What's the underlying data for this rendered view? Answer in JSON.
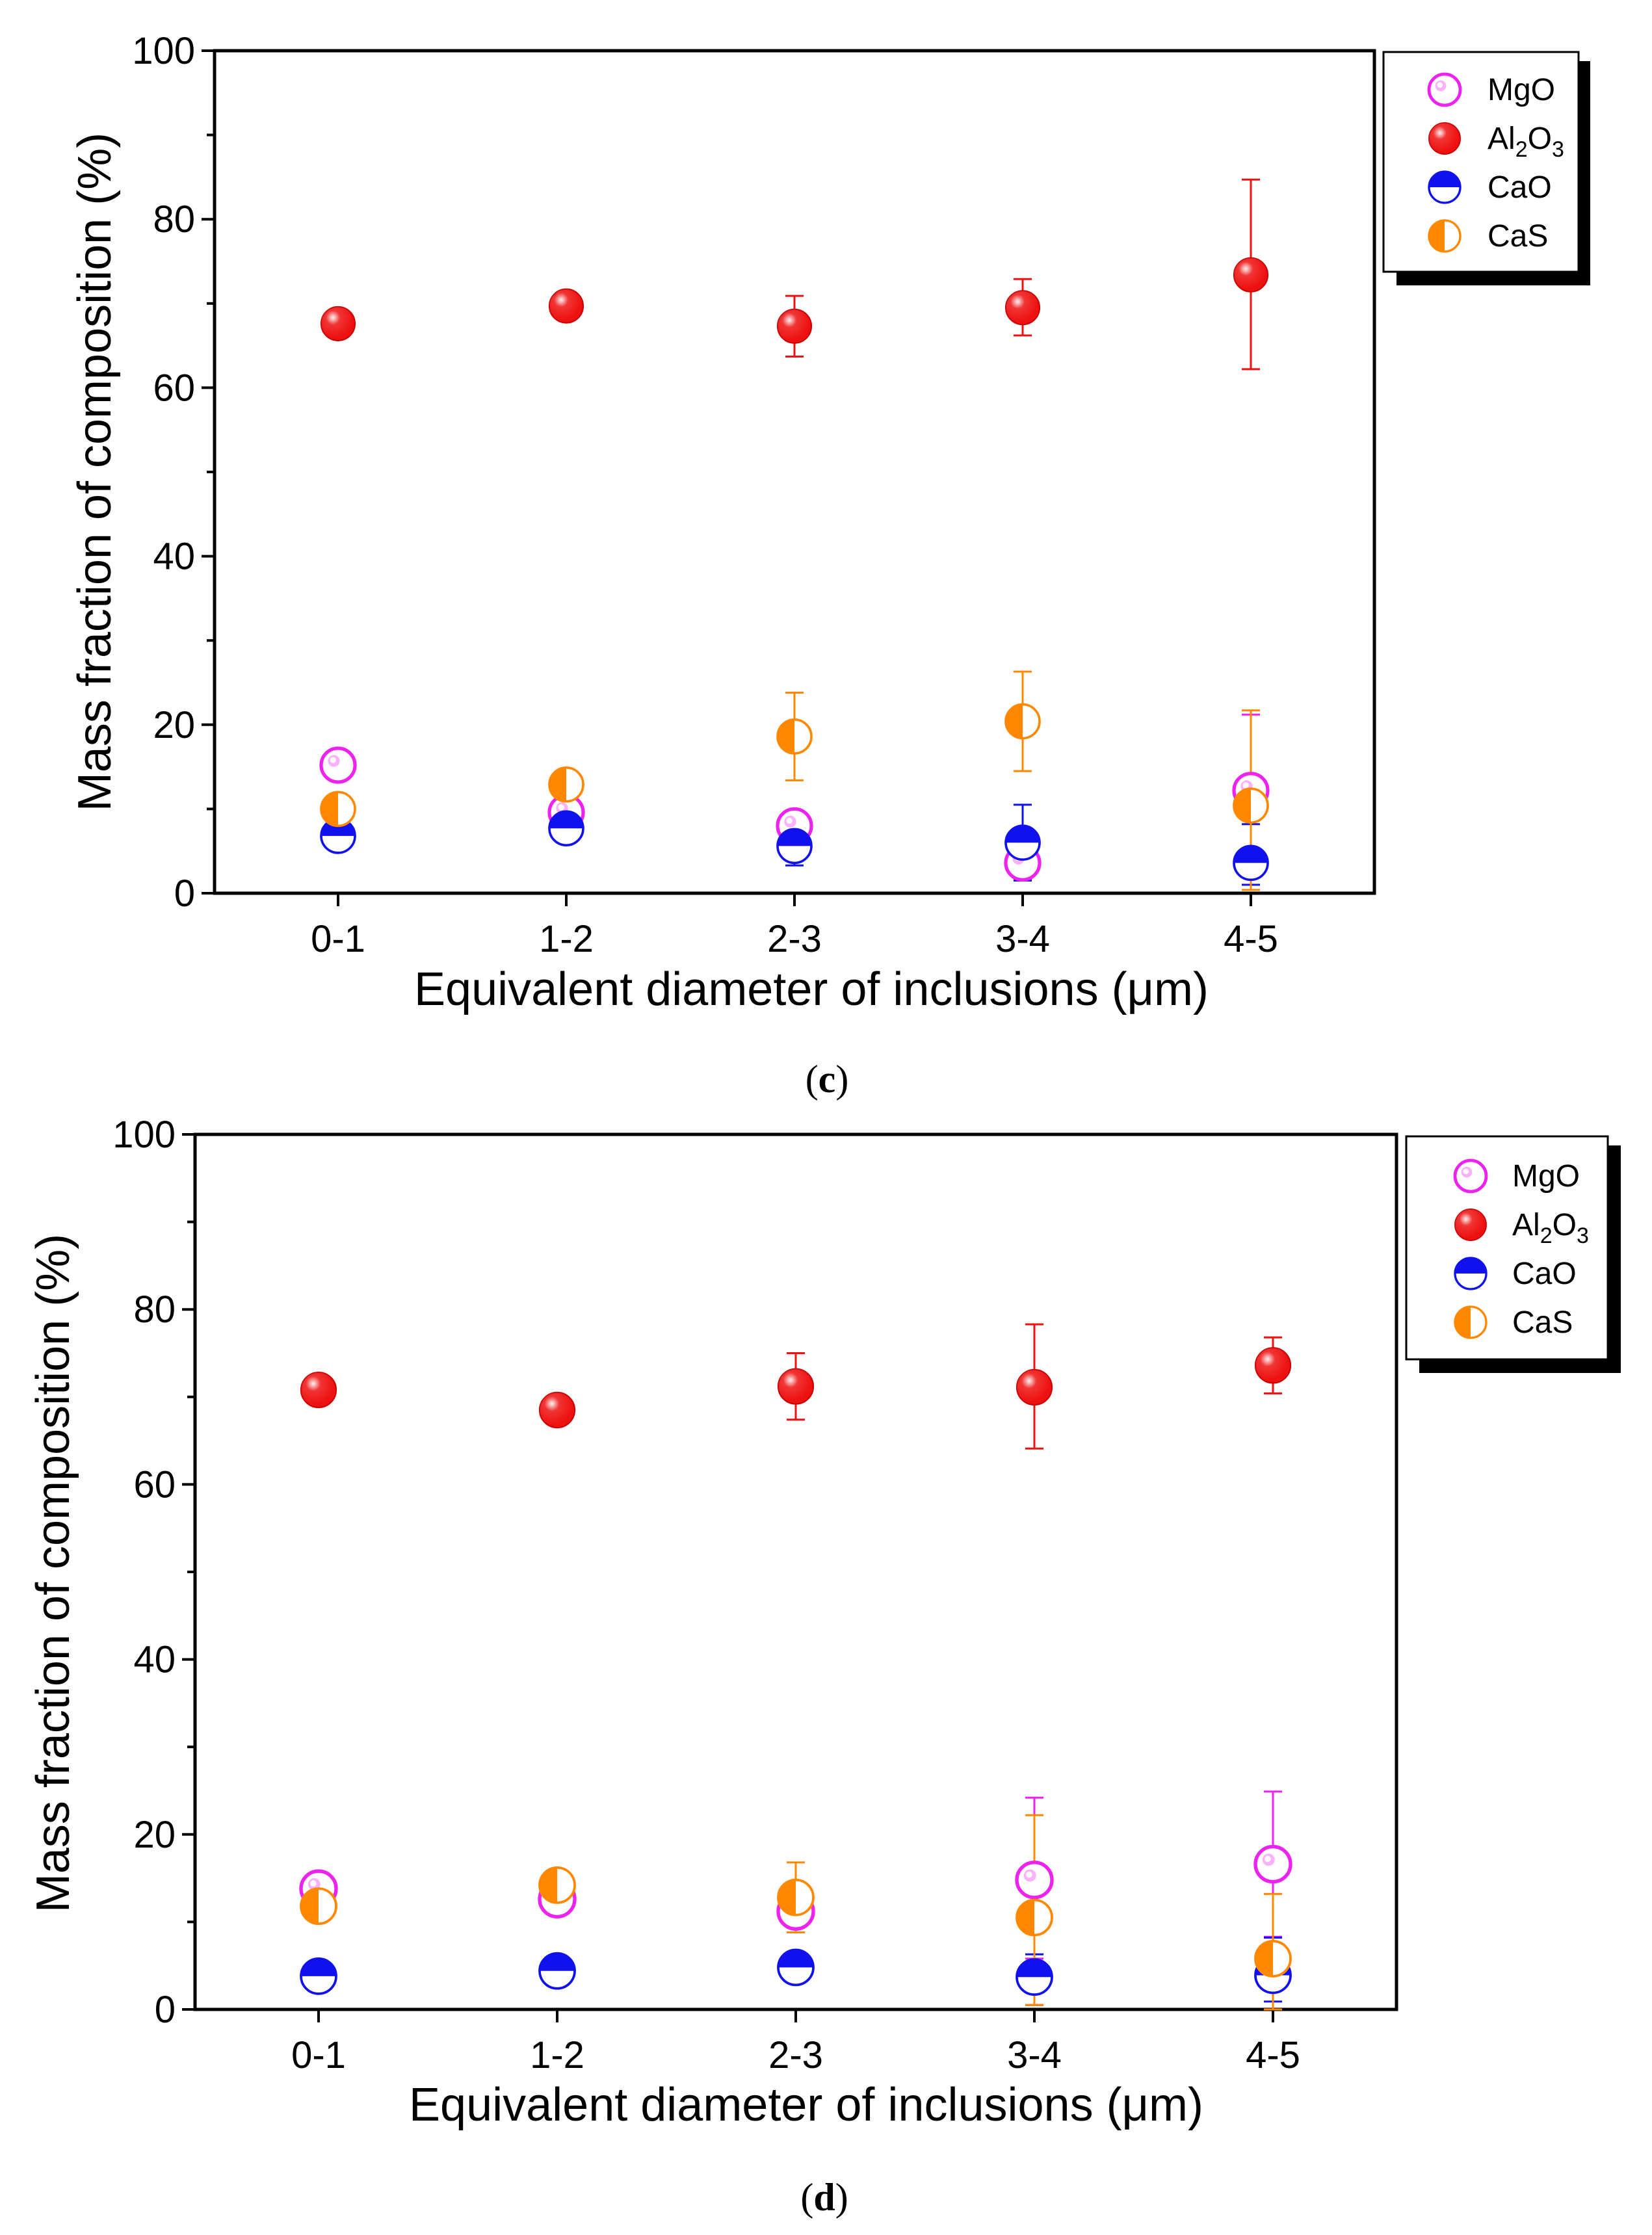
{
  "chart_data": [
    {
      "type": "scatter",
      "panel_label": "c",
      "categories": [
        "0-1",
        "1-2",
        "2-3",
        "3-4",
        "4-5"
      ],
      "xlabel": "Equivalent diameter of inclusions (μm)",
      "ylabel": "Mass fraction of composition (%)",
      "ylim": [
        0,
        100
      ],
      "yticks": [
        "0",
        "20",
        "40",
        "60",
        "80",
        "100"
      ],
      "legend_position": "top-right",
      "series": [
        {
          "name": "MgO",
          "color": "#ee22ee",
          "marker": "open-circle",
          "values": [
            15.2,
            9.6,
            8.0,
            3.6,
            12.2
          ],
          "err_low": [
            1.0,
            1.0,
            1.5,
            2.0,
            3.0
          ],
          "err_high": [
            1.0,
            1.0,
            1.5,
            1.2,
            9.0
          ]
        },
        {
          "name": "Al2O3",
          "color": "#ee1111",
          "marker": "filled-circle",
          "values": [
            67.6,
            69.7,
            67.3,
            69.5,
            73.4
          ],
          "err_low": [
            0.8,
            0.8,
            3.6,
            3.3,
            11.2
          ],
          "err_high": [
            0.8,
            0.8,
            3.6,
            3.4,
            11.3
          ]
        },
        {
          "name": "CaO",
          "color": "#1111ee",
          "marker": "top-half-filled",
          "values": [
            6.8,
            7.7,
            5.6,
            6.0,
            3.6
          ],
          "err_low": [
            0.6,
            1.6,
            2.3,
            4.5,
            2.6
          ],
          "err_high": [
            0.6,
            0.8,
            2.3,
            4.5,
            4.6
          ]
        },
        {
          "name": "CaS",
          "color": "#ff8800",
          "marker": "left-half-filled",
          "values": [
            10.0,
            12.9,
            18.6,
            20.4,
            10.4
          ],
          "err_low": [
            1.8,
            0.8,
            5.2,
            5.9,
            10.0
          ],
          "err_high": [
            1.8,
            0.8,
            5.2,
            5.9,
            11.3
          ]
        }
      ]
    },
    {
      "type": "scatter",
      "panel_label": "d",
      "categories": [
        "0-1",
        "1-2",
        "2-3",
        "3-4",
        "4-5"
      ],
      "xlabel": "Equivalent diameter of inclusions (μm)",
      "ylabel": "Mass fraction of composition (%)",
      "ylim": [
        0,
        100
      ],
      "yticks": [
        "0",
        "20",
        "40",
        "60",
        "80",
        "100"
      ],
      "legend_position": "top-right",
      "series": [
        {
          "name": "MgO",
          "color": "#ee22ee",
          "marker": "open-circle",
          "values": [
            13.8,
            12.6,
            11.2,
            14.8,
            16.6
          ],
          "err_low": [
            1.2,
            1.0,
            1.2,
            9.0,
            8.3
          ],
          "err_high": [
            1.2,
            1.0,
            1.2,
            9.4,
            8.3
          ]
        },
        {
          "name": "Al2O3",
          "color": "#ee1111",
          "marker": "filled-circle",
          "values": [
            70.8,
            68.5,
            71.2,
            71.1,
            73.6
          ],
          "err_low": [
            0.8,
            0.8,
            3.8,
            7.0,
            3.2
          ],
          "err_high": [
            0.8,
            0.8,
            3.8,
            7.2,
            3.2
          ]
        },
        {
          "name": "CaO",
          "color": "#1111ee",
          "marker": "top-half-filled",
          "values": [
            3.8,
            4.4,
            4.8,
            3.7,
            3.9
          ],
          "err_low": [
            1.6,
            1.0,
            0.8,
            3.2,
            3.0
          ],
          "err_high": [
            1.0,
            1.0,
            0.8,
            2.6,
            4.3
          ]
        },
        {
          "name": "CaS",
          "color": "#ff8800",
          "marker": "left-half-filled",
          "values": [
            11.8,
            14.2,
            12.8,
            10.5,
            5.8
          ],
          "err_low": [
            1.5,
            1.5,
            4.0,
            10.0,
            5.8
          ],
          "err_high": [
            1.5,
            1.5,
            4.0,
            11.7,
            7.4
          ]
        }
      ]
    }
  ]
}
